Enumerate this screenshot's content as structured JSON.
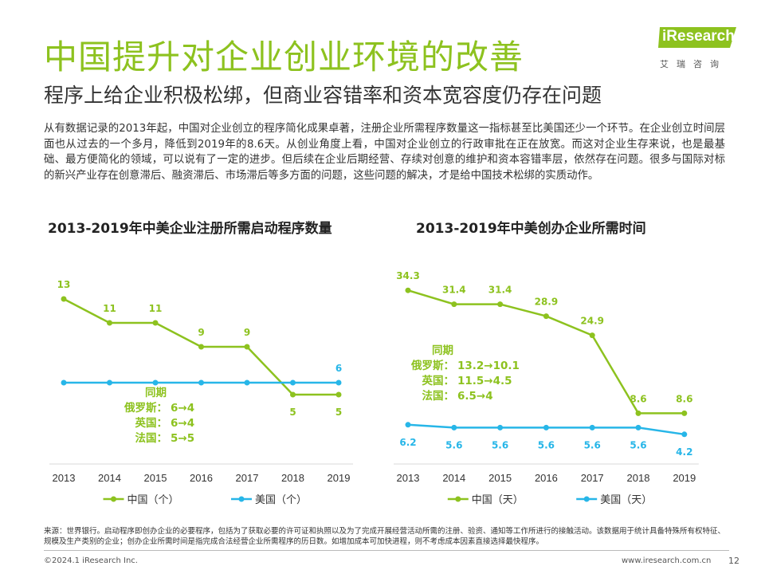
{
  "header": {
    "title": "中国提升对企业创业环境的改善",
    "subtitle": "程序上给企业积极松绑，但商业容错率和资本宽容度仍存在问题"
  },
  "logo": {
    "brand": "iResearch",
    "sub": "艾瑞咨询"
  },
  "body": "从有数据记录的2013年起，中国对企业创立的程序简化成果卓著，注册企业所需程序数量这一指标甚至比美国还少一个环节。在企业创立时间层面也从过去的一个多月，降低到2019年的8.6天。从创业角度上看，中国对企业创立的行政审批在正在放宽。而这对企业生存来说，也是最基础、最方便简化的领域，可以说有了一定的进步。但后续在企业后期经营、存续对创意的维护和资本容错率层，依然存在问题。很多与国际对标的新兴产业存在创意滞后、融资滞后、市场滞后等多方面的问题，这些问题的解决，才是给中国技术松绑的实质动作。",
  "colors": {
    "green": "#8DC21F",
    "blue": "#27B6E8"
  },
  "chart_data": [
    {
      "type": "line",
      "title": "2013-2019年中美企业注册所需启动程序数量",
      "x": [
        "2013",
        "2014",
        "2015",
        "2016",
        "2017",
        "2018",
        "2019"
      ],
      "series": [
        {
          "name": "中国（个）",
          "values": [
            13,
            11,
            11,
            9,
            9,
            5,
            5
          ],
          "labels": [
            "13",
            "11",
            "11",
            "9",
            "9",
            "5",
            "5"
          ]
        },
        {
          "name": "美国（个）",
          "values": [
            6,
            6,
            6,
            6,
            6,
            6,
            6
          ],
          "labels": [
            "",
            "",
            "",
            "",
            "",
            "",
            "6"
          ]
        }
      ],
      "ylim": [
        0,
        16
      ],
      "grid": false,
      "legend": "bottom",
      "annotation": [
        "同期",
        "俄罗斯：",
        "6→4",
        "英国：",
        "6→4",
        "法国：",
        "5→5"
      ]
    },
    {
      "type": "line",
      "title": "2013-2019年中美创办企业所需时间",
      "x": [
        "2013",
        "2014",
        "2015",
        "2016",
        "2017",
        "2018",
        "2019"
      ],
      "series": [
        {
          "name": "中国（天）",
          "values": [
            34.3,
            31.4,
            31.4,
            28.9,
            24.9,
            8.6,
            8.6
          ],
          "labels": [
            "34.3",
            "31.4",
            "31.4",
            "28.9",
            "24.9",
            "8.6",
            "8.6"
          ]
        },
        {
          "name": "美国（天）",
          "values": [
            6.2,
            5.6,
            5.6,
            5.6,
            5.6,
            5.6,
            4.2
          ],
          "labels": [
            "6.2",
            "5.6",
            "5.6",
            "5.6",
            "5.6",
            "5.6",
            "4.2"
          ]
        }
      ],
      "ylim": [
        0,
        40
      ],
      "grid": false,
      "legend": "bottom",
      "annotation": [
        "同期",
        "俄罗斯：",
        "13.2→10.1",
        "英国：",
        "11.5→4.5",
        "法国：",
        "6.5→4"
      ]
    }
  ],
  "footer": {
    "source": "来源：世界银行。启动程序即创办企业的必要程序，包括为了获取必要的许可证和执照以及为了完成开展经营活动所需的注册、验资、通知等工作所进行的接触活动。该数据用于统计具备特殊所有权特征、规模及生产类别的企业；创办企业所需时间是指完成合法经营企业所需程序的历日数。如增加成本可加快进程，则不考虑成本因素直接选择最快程序。",
    "copyright": "©2024.1 iResearch Inc.",
    "url": "www.iresearch.com.cn",
    "page": "12"
  }
}
